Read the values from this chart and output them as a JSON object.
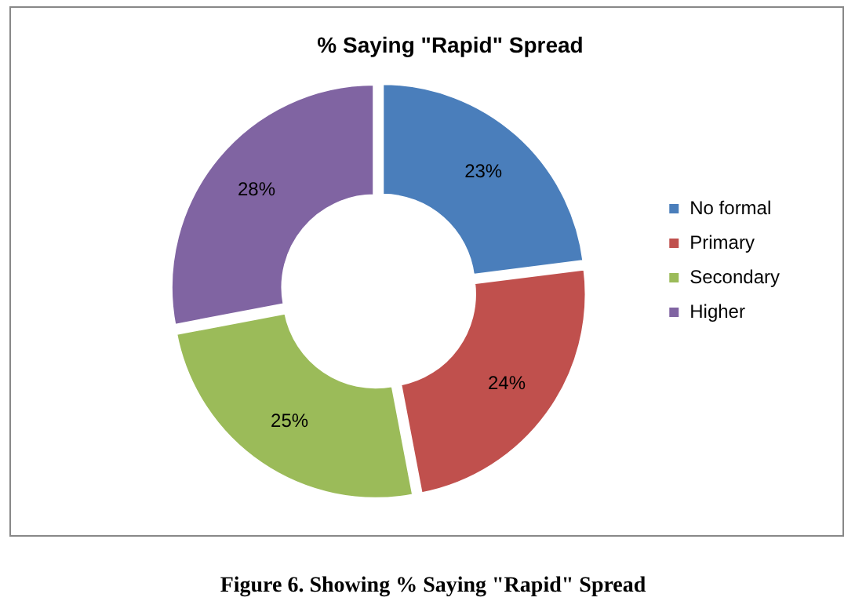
{
  "chart_data": {
    "type": "donut",
    "title": "% Saying \"Rapid\" Spread",
    "categories": [
      "No formal",
      "Primary",
      "Secondary",
      "Higher"
    ],
    "values": [
      23,
      24,
      25,
      28
    ],
    "value_labels": [
      "23%",
      "24%",
      "25%",
      "28%"
    ],
    "colors": [
      "#4a7ebb",
      "#c0504d",
      "#9bbb59",
      "#8064a2"
    ],
    "legend": "right",
    "annotations": [
      "Figure 6. Showing % Saying \"Rapid\" Spread"
    ]
  }
}
